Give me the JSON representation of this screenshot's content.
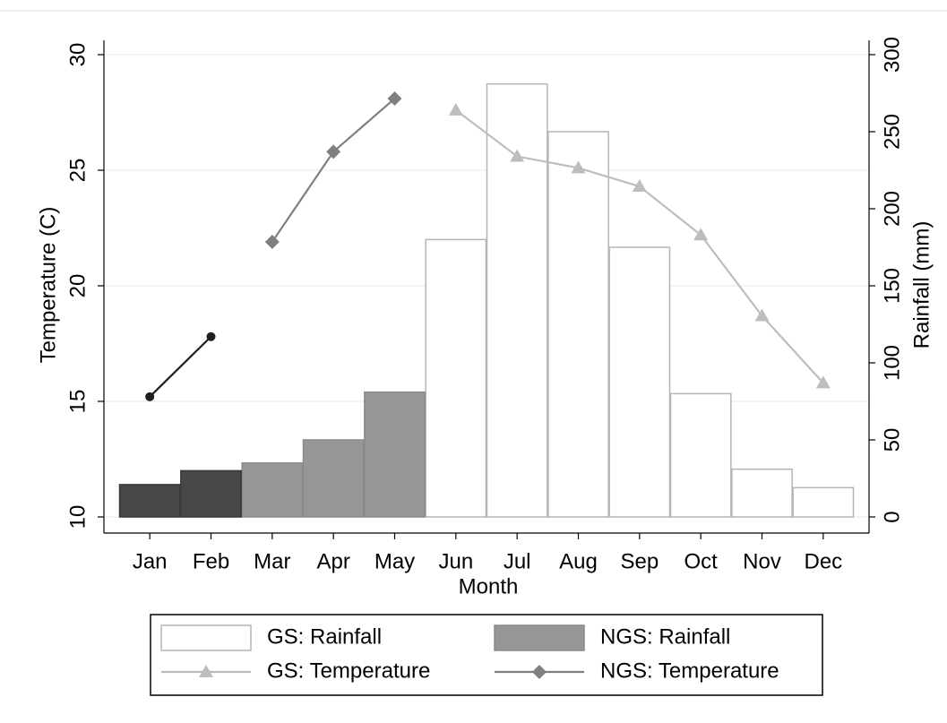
{
  "chart_data": {
    "type": "bar-line",
    "x_label": "Month",
    "y_label": "Temperature (C)",
    "y2_label": "Rainfall (mm)",
    "categories": [
      "Jan",
      "Feb",
      "Mar",
      "Apr",
      "May",
      "Jun",
      "Jul",
      "Aug",
      "Sep",
      "Oct",
      "Nov",
      "Dec"
    ],
    "ylim": [
      10,
      30
    ],
    "yticks": [
      10,
      15,
      20,
      25,
      30
    ],
    "y2lim": [
      0,
      300
    ],
    "y2ticks": [
      0,
      50,
      100,
      150,
      200,
      250,
      300
    ],
    "grid": true,
    "legend": "bottom",
    "series": [
      {
        "name": "GS: Rainfall",
        "type": "bar",
        "axis": "y2",
        "color": "#ffffff",
        "edge": "#b5b5b5",
        "values": [
          null,
          null,
          null,
          null,
          null,
          180,
          281,
          250,
          175,
          80,
          31,
          19
        ]
      },
      {
        "name": "NGS: Rainfall",
        "type": "bar",
        "axis": "y2",
        "color": "#969696",
        "edge": "#8a8a8a",
        "values": [
          null,
          null,
          35,
          50,
          81,
          null,
          null,
          null,
          null,
          null,
          null,
          null
        ]
      },
      {
        "type": "bar",
        "axis": "y2",
        "color": "#474747",
        "edge": "#3a3a3a",
        "values": [
          21,
          30,
          null,
          null,
          null,
          null,
          null,
          null,
          null,
          null,
          null,
          null
        ]
      },
      {
        "name": "GS: Temperature",
        "type": "line",
        "axis": "y",
        "color": "#bdbdbd",
        "marker": "triangle",
        "values": [
          null,
          null,
          null,
          null,
          null,
          27.6,
          25.6,
          25.1,
          24.3,
          22.2,
          18.7,
          15.8
        ]
      },
      {
        "name": "NGS: Temperature",
        "type": "line",
        "axis": "y",
        "color": "#7f7f7f",
        "marker": "diamond",
        "values": [
          null,
          null,
          21.9,
          25.8,
          28.1,
          null,
          null,
          null,
          null,
          null,
          null,
          null
        ]
      },
      {
        "type": "line",
        "axis": "y",
        "color": "#1e1e1e",
        "marker": "circle",
        "values": [
          15.2,
          17.8,
          null,
          null,
          null,
          null,
          null,
          null,
          null,
          null,
          null,
          null
        ]
      }
    ]
  }
}
